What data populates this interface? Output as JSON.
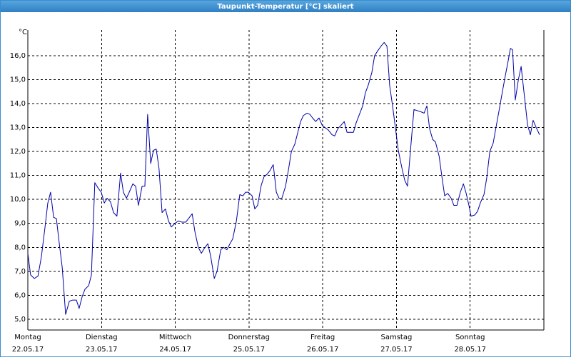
{
  "chart_data": {
    "type": "line",
    "title": "Taupunkt-Temperatur [°C] skaliert",
    "y_unit": "°C",
    "xlim": [
      0,
      168
    ],
    "ylim": [
      4.55,
      17.07
    ],
    "grid": true,
    "xticks": [
      {
        "value": 0,
        "label": [
          "Montag",
          "22.05.17"
        ]
      },
      {
        "value": 24,
        "label": [
          "Dienstag",
          "23.05.17"
        ]
      },
      {
        "value": 48,
        "label": [
          "Mittwoch",
          "24.05.17"
        ]
      },
      {
        "value": 72,
        "label": [
          "Donnerstag",
          "25.05.17"
        ]
      },
      {
        "value": 96,
        "label": [
          "Freitag",
          "26.05.17"
        ]
      },
      {
        "value": 120,
        "label": [
          "Samstag",
          "27.05.17"
        ]
      },
      {
        "value": 144,
        "label": [
          "Sonntag",
          "28.05.17"
        ]
      }
    ],
    "yticks": [
      {
        "value": 5,
        "label": "5,0"
      },
      {
        "value": 6,
        "label": "6,0"
      },
      {
        "value": 7,
        "label": "7,0"
      },
      {
        "value": 8,
        "label": "8,0"
      },
      {
        "value": 9,
        "label": "9,0"
      },
      {
        "value": 10,
        "label": "10,0"
      },
      {
        "value": 11,
        "label": "11,0"
      },
      {
        "value": 12,
        "label": "12,0"
      },
      {
        "value": 13,
        "label": "13,0"
      },
      {
        "value": 14,
        "label": "14,0"
      },
      {
        "value": 15,
        "label": "15,0"
      },
      {
        "value": 16,
        "label": "16,0"
      }
    ],
    "series": [
      {
        "color": "#0000a8",
        "x": [
          0,
          0.9,
          2.1,
          3.3,
          4.4,
          5.6,
          6.5,
          7.4,
          8.4,
          9.3,
          10.2,
          11.2,
          12.3,
          13.5,
          14.6,
          15.8,
          16.7,
          17.7,
          18.6,
          19.8,
          20.7,
          21.8,
          23.0,
          23.9,
          24.9,
          25.8,
          26.9,
          27.9,
          29.0,
          30.2,
          31.1,
          32.1,
          33.0,
          34.2,
          35.1,
          36.0,
          37.2,
          38.1,
          39.0,
          40.0,
          40.9,
          41.8,
          42.7,
          43.7,
          44.8,
          45.8,
          46.7,
          47.9,
          49.0,
          50.2,
          51.4,
          52.3,
          53.5,
          54.4,
          55.5,
          56.5,
          57.4,
          58.6,
          59.5,
          60.7,
          61.6,
          62.8,
          63.7,
          64.8,
          65.8,
          66.7,
          67.9,
          69.0,
          70.0,
          70.9,
          71.8,
          73.0,
          73.9,
          74.8,
          76.0,
          76.9,
          77.9,
          78.8,
          79.9,
          80.9,
          81.8,
          82.7,
          83.9,
          84.8,
          85.8,
          86.9,
          87.9,
          88.8,
          89.7,
          90.9,
          91.8,
          92.7,
          93.7,
          94.8,
          95.8,
          96.7,
          97.8,
          99.0,
          99.9,
          100.9,
          102.0,
          103.0,
          103.9,
          105.0,
          106.0,
          106.9,
          108.1,
          109.0,
          109.9,
          110.9,
          112.0,
          112.9,
          113.9,
          115.0,
          116.0,
          116.9,
          117.8,
          118.8,
          119.7,
          120.6,
          121.8,
          122.7,
          123.6,
          124.8,
          125.7,
          126.9,
          128.1,
          129.0,
          129.9,
          130.8,
          131.8,
          132.7,
          133.9,
          134.8,
          135.7,
          136.7,
          137.8,
          138.7,
          139.7,
          140.8,
          141.8,
          142.7,
          143.6,
          144.3,
          145.5,
          146.4,
          147.3,
          148.5,
          149.4,
          150.4,
          151.5,
          152.4,
          153.4,
          154.5,
          155.5,
          156.4,
          157.1,
          157.8,
          158.7,
          159.7,
          160.6,
          161.8,
          162.7,
          163.6,
          164.5,
          165.5,
          166.6
        ],
        "values": [
          7.75,
          6.85,
          6.7,
          6.8,
          7.6,
          8.85,
          9.85,
          10.3,
          9.25,
          9.2,
          8.2,
          7.15,
          5.2,
          5.75,
          5.8,
          5.8,
          5.45,
          5.95,
          6.25,
          6.4,
          6.85,
          10.7,
          10.45,
          10.3,
          9.85,
          10.05,
          9.9,
          9.45,
          9.3,
          11.1,
          10.3,
          10.05,
          10.3,
          10.65,
          10.55,
          9.75,
          10.55,
          10.55,
          13.55,
          11.5,
          12.05,
          12.1,
          11.3,
          9.45,
          9.6,
          9.1,
          8.85,
          9.0,
          9.1,
          9.05,
          9.05,
          9.2,
          9.4,
          8.65,
          8.0,
          7.75,
          7.95,
          8.15,
          7.65,
          6.7,
          7.0,
          7.9,
          8.0,
          7.9,
          8.15,
          8.35,
          9.1,
          10.2,
          10.15,
          10.3,
          10.3,
          10.15,
          9.6,
          9.75,
          10.6,
          10.95,
          11.05,
          11.2,
          11.45,
          10.3,
          10.05,
          10.05,
          10.55,
          11.2,
          12.0,
          12.3,
          12.8,
          13.25,
          13.5,
          13.6,
          13.55,
          13.4,
          13.25,
          13.4,
          13.1,
          13.0,
          12.9,
          12.7,
          12.65,
          12.95,
          13.1,
          13.25,
          12.8,
          12.8,
          12.8,
          13.2,
          13.6,
          13.9,
          14.45,
          14.8,
          15.3,
          16.0,
          16.2,
          16.4,
          16.55,
          16.4,
          14.75,
          13.85,
          12.95,
          12.05,
          11.3,
          10.8,
          10.55,
          12.4,
          13.75,
          13.7,
          13.65,
          13.6,
          13.9,
          12.95,
          12.5,
          12.4,
          11.8,
          10.95,
          10.15,
          10.25,
          10.05,
          9.75,
          9.75,
          10.3,
          10.65,
          10.25,
          9.75,
          9.3,
          9.35,
          9.5,
          9.85,
          10.2,
          10.9,
          12.0,
          12.35,
          13.0,
          13.7,
          14.5,
          15.2,
          15.8,
          16.3,
          16.25,
          14.15,
          15.0,
          15.55,
          14.15,
          13.1,
          12.7,
          13.3,
          13.0,
          12.7
        ]
      }
    ]
  }
}
